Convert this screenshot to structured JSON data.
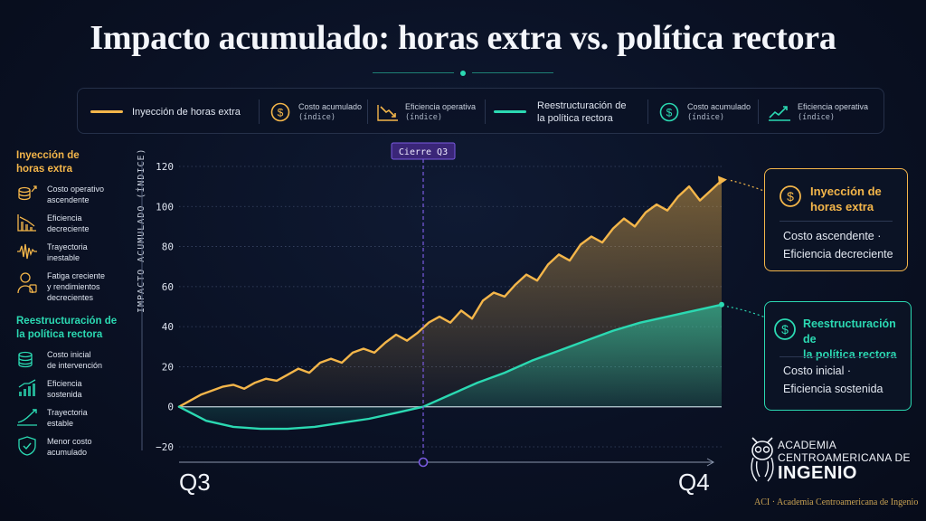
{
  "title": "Impacto acumulado: horas extra vs. política rectora",
  "colors": {
    "orange": "#f4b64a",
    "teal": "#2bd9b2",
    "purple": "#7a5ae0",
    "background": "#0a1124"
  },
  "legend": {
    "series1_label": "Inyección de horas extra",
    "s1_cost_label": "Costo acumulado",
    "s1_cost_unit": "(índice)",
    "s1_eff_label": "Eficiencia operativa",
    "s1_eff_unit": "(índice)",
    "series2_label_1": "Reestructuración de",
    "series2_label_2": "la política rectora",
    "s2_cost_label": "Costo acumulado",
    "s2_cost_unit": "(índice)",
    "s2_eff_label": "Eficiencia operativa",
    "s2_eff_unit": "(índice)",
    "icons": [
      "dollar-circle-icon",
      "trend-down-icon",
      "dollar-circle-icon",
      "trend-up-icon"
    ]
  },
  "sidebar": {
    "group1": {
      "heading_1": "Inyección de",
      "heading_2": "horas extra",
      "items": [
        {
          "icon": "coin-stack-up-icon",
          "line1": "Costo operativo",
          "line2": "ascendente",
          "line3": ""
        },
        {
          "icon": "chart-down-icon",
          "line1": "Eficiencia",
          "line2": "decreciente",
          "line3": ""
        },
        {
          "icon": "waveform-icon",
          "line1": "Trayectoria",
          "line2": "inestable",
          "line3": ""
        },
        {
          "icon": "tired-worker-icon",
          "line1": "Fatiga creciente",
          "line2": "y rendimientos",
          "line3": "decrecientes"
        }
      ]
    },
    "group2": {
      "heading_1": "Reestructuración de",
      "heading_2": "la política rectora",
      "items": [
        {
          "icon": "coin-stack-icon",
          "line1": "Costo inicial",
          "line2": "de intervención"
        },
        {
          "icon": "chart-up-icon",
          "line1": "Eficiencia",
          "line2": "sostenida"
        },
        {
          "icon": "trend-stable-icon",
          "line1": "Trayectoria",
          "line2": "estable"
        },
        {
          "icon": "shield-check-icon",
          "line1": "Menor costo",
          "line2": "acumulado"
        }
      ]
    }
  },
  "callouts": {
    "overtime": {
      "heading_1": "Inyección de",
      "heading_2": "horas extra",
      "body_1": "Costo ascendente ·",
      "body_2": "Eficiencia decreciente"
    },
    "policy": {
      "heading_1": "Reestructuración de",
      "heading_2": "la política rectora",
      "body_1": "Costo inicial ·",
      "body_2": "Eficiencia sostenida"
    }
  },
  "brand": {
    "line1": "ACADEMIA",
    "line2": "CENTROAMERICANA DE",
    "line3": "INGENIO",
    "footer": "ACI · Academia Centroamericana de Ingenio"
  },
  "chart_data": {
    "type": "area",
    "title": "Impacto acumulado: horas extra vs. política rectora",
    "xlabel": "",
    "ylabel": "IMPACTO ACUMULADO (ÍNDICE)",
    "x_range_labels": [
      "Q3",
      "Q4"
    ],
    "x_domain": [
      0,
      100
    ],
    "ylim": [
      -20,
      120
    ],
    "yticks": [
      -20,
      0,
      20,
      40,
      60,
      80,
      100,
      120
    ],
    "grid": "horizontal dotted",
    "marker": {
      "x": 45,
      "label": "Cierre Q3"
    },
    "series": [
      {
        "name": "Inyección de horas extra",
        "color": "#f4b64a",
        "x": [
          0,
          2,
          4,
          6,
          8,
          10,
          12,
          14,
          16,
          18,
          20,
          22,
          24,
          26,
          28,
          30,
          32,
          34,
          36,
          38,
          40,
          42,
          44,
          46,
          48,
          50,
          52,
          54,
          56,
          58,
          60,
          62,
          64,
          66,
          68,
          70,
          72,
          74,
          76,
          78,
          80,
          82,
          84,
          86,
          88,
          90,
          92,
          94,
          96,
          98,
          100
        ],
        "y": [
          0,
          3,
          6,
          8,
          10,
          11,
          9,
          12,
          14,
          13,
          16,
          19,
          17,
          22,
          24,
          22,
          27,
          29,
          27,
          32,
          36,
          33,
          37,
          42,
          45,
          42,
          48,
          44,
          53,
          57,
          55,
          61,
          66,
          63,
          71,
          76,
          73,
          81,
          85,
          82,
          89,
          94,
          90,
          97,
          101,
          98,
          105,
          110,
          103,
          108,
          113
        ]
      },
      {
        "name": "Reestructuración de la política rectora",
        "color": "#2bd9b2",
        "x": [
          0,
          5,
          10,
          15,
          20,
          25,
          30,
          35,
          40,
          45,
          50,
          55,
          60,
          65,
          70,
          75,
          80,
          85,
          90,
          95,
          100
        ],
        "y": [
          0,
          -7,
          -10,
          -11,
          -11,
          -10,
          -8,
          -6,
          -3,
          0,
          6,
          12,
          17,
          23,
          28,
          33,
          38,
          42,
          45,
          48,
          51
        ]
      }
    ]
  }
}
